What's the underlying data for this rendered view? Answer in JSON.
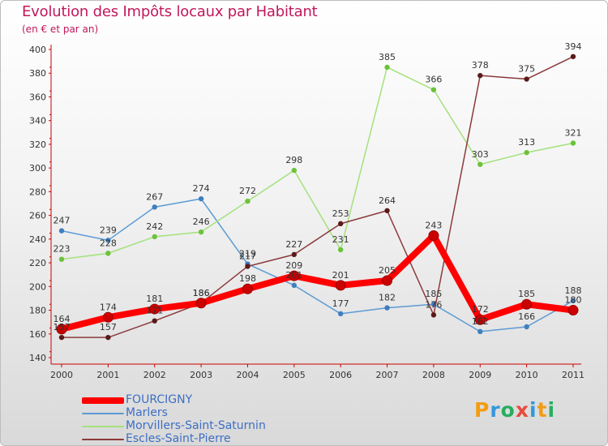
{
  "header": {
    "title": "Evolution des Impôts locaux par Habitant",
    "subtitle": "(en € et par an)"
  },
  "logo": {
    "text": "Proxiti",
    "letters": [
      {
        "ch": "P",
        "color": "#f39c12"
      },
      {
        "ch": "r",
        "color": "#3498db"
      },
      {
        "ch": "o",
        "color": "#27ae60"
      },
      {
        "ch": "x",
        "color": "#e74c3c"
      },
      {
        "ch": "i",
        "color": "#3498db"
      },
      {
        "ch": "t",
        "color": "#f39c12"
      },
      {
        "ch": "i",
        "color": "#27ae60"
      }
    ]
  },
  "chart_data": {
    "type": "line",
    "title": "Evolution des Impôts locaux par Habitant",
    "ylabel": "(en € et par an)",
    "xlabel": "",
    "categories": [
      "2000",
      "2001",
      "2002",
      "2003",
      "2004",
      "2005",
      "2006",
      "2007",
      "2008",
      "2009",
      "2010",
      "2011"
    ],
    "ylim": [
      140,
      400
    ],
    "yticks": [
      140,
      160,
      180,
      200,
      220,
      240,
      260,
      280,
      300,
      320,
      340,
      360,
      380,
      400
    ],
    "grid": false,
    "legend_position": "bottom-left",
    "series": [
      {
        "name": "FOURCIGNY",
        "color": "#ff0000",
        "marker": "#cc0000",
        "emphasis": true,
        "values": [
          164,
          174,
          181,
          186,
          198,
          209,
          201,
          205,
          243,
          172,
          185,
          180
        ]
      },
      {
        "name": "Marlers",
        "color": "#5b9bd5",
        "marker": "#3f7fc0",
        "emphasis": false,
        "values": [
          247,
          239,
          267,
          274,
          219,
          201,
          177,
          182,
          185,
          162,
          166,
          188
        ]
      },
      {
        "name": "Morvillers-Saint-Saturnin",
        "color": "#a4e17c",
        "marker": "#6cc23a",
        "emphasis": false,
        "values": [
          223,
          228,
          242,
          246,
          272,
          298,
          231,
          385,
          366,
          303,
          313,
          321
        ]
      },
      {
        "name": "Escles-Saint-Pierre",
        "color": "#8b3a3a",
        "marker": "#5a1a1a",
        "emphasis": false,
        "values": [
          157,
          157,
          171,
          186,
          217,
          227,
          253,
          264,
          176,
          378,
          375,
          394
        ]
      }
    ],
    "labels": [
      {
        "series": 0,
        "text": [
          "164",
          "174",
          "181",
          "186",
          "198",
          "209",
          "201",
          "205",
          "243",
          "172",
          "185",
          "180"
        ]
      },
      {
        "series": 1,
        "text": [
          "247",
          "239",
          "267",
          "274",
          "219",
          "201",
          "177",
          "182",
          "185",
          "162",
          "166",
          "188"
        ]
      },
      {
        "series": 2,
        "text": [
          "223",
          "228",
          "242",
          "246",
          "272",
          "298",
          "231",
          "385",
          "366",
          "303",
          "313",
          "321"
        ]
      },
      {
        "series": 3,
        "text": [
          "157",
          "157",
          "171",
          "186",
          "217",
          "227",
          "253",
          "264",
          "176",
          "378",
          "375",
          "394"
        ]
      }
    ]
  }
}
